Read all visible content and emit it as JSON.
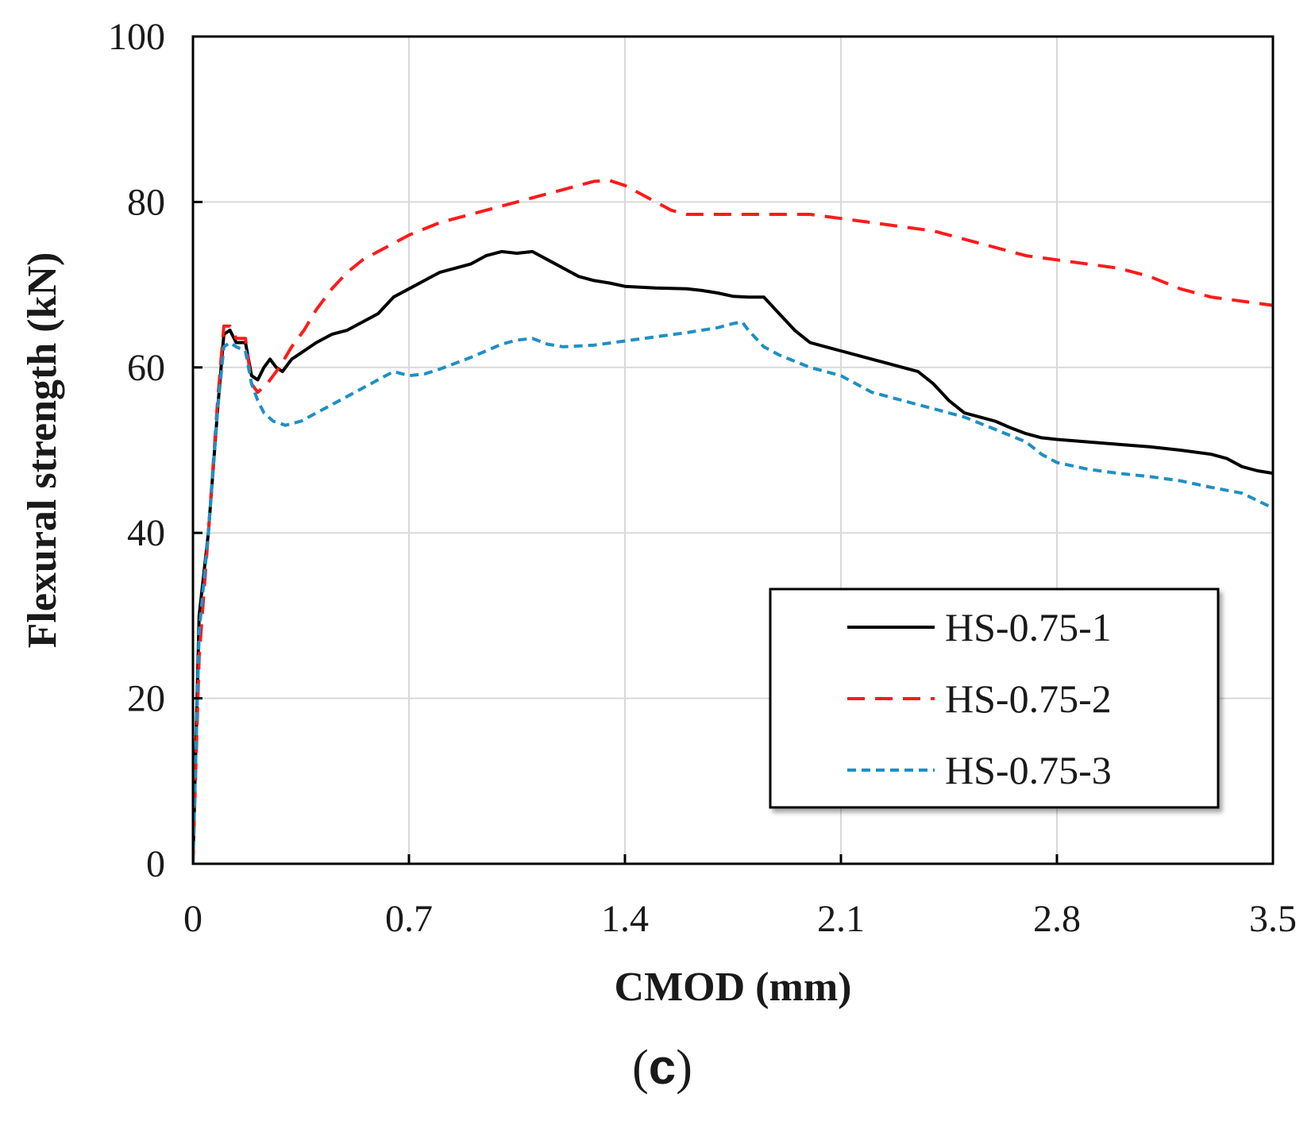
{
  "chart_data": {
    "type": "line",
    "panel_label_open": "(",
    "panel_label_letter": "c",
    "panel_label_close": ")",
    "xlabel": "CMOD (mm)",
    "ylabel": "Flexural strength (kN)",
    "xlim": [
      0,
      3.5
    ],
    "ylim": [
      0,
      100
    ],
    "x_ticks": [
      0,
      0.7,
      1.4,
      2.1,
      2.8,
      3.5
    ],
    "x_tick_labels": [
      "0",
      "0.7",
      "1.4",
      "2.1",
      "2.8",
      "3.5"
    ],
    "y_ticks": [
      0,
      20,
      40,
      60,
      80,
      100
    ],
    "y_tick_labels": [
      "0",
      "20",
      "40",
      "60",
      "80",
      "100"
    ],
    "grid": true,
    "legend_position": "lower-right",
    "series": [
      {
        "name": "HS-0.75-1",
        "color": "#000000",
        "dash": "solid",
        "points": [
          [
            0,
            0
          ],
          [
            0.02,
            30
          ],
          [
            0.05,
            40
          ],
          [
            0.08,
            55
          ],
          [
            0.1,
            64
          ],
          [
            0.12,
            64.5
          ],
          [
            0.14,
            63
          ],
          [
            0.17,
            63
          ],
          [
            0.19,
            59
          ],
          [
            0.21,
            58.5
          ],
          [
            0.23,
            60
          ],
          [
            0.25,
            61
          ],
          [
            0.27,
            60
          ],
          [
            0.29,
            59.5
          ],
          [
            0.32,
            61
          ],
          [
            0.36,
            62
          ],
          [
            0.4,
            63
          ],
          [
            0.45,
            64
          ],
          [
            0.5,
            64.5
          ],
          [
            0.55,
            65.5
          ],
          [
            0.6,
            66.5
          ],
          [
            0.65,
            68.5
          ],
          [
            0.7,
            69.5
          ],
          [
            0.75,
            70.5
          ],
          [
            0.8,
            71.5
          ],
          [
            0.85,
            72
          ],
          [
            0.9,
            72.5
          ],
          [
            0.95,
            73.5
          ],
          [
            1.0,
            74
          ],
          [
            1.05,
            73.8
          ],
          [
            1.1,
            74
          ],
          [
            1.15,
            73
          ],
          [
            1.2,
            72
          ],
          [
            1.25,
            71
          ],
          [
            1.3,
            70.5
          ],
          [
            1.35,
            70.2
          ],
          [
            1.4,
            69.8
          ],
          [
            1.5,
            69.6
          ],
          [
            1.6,
            69.5
          ],
          [
            1.65,
            69.3
          ],
          [
            1.7,
            69
          ],
          [
            1.75,
            68.6
          ],
          [
            1.8,
            68.5
          ],
          [
            1.85,
            68.5
          ],
          [
            1.9,
            66.5
          ],
          [
            1.95,
            64.5
          ],
          [
            2.0,
            63
          ],
          [
            2.05,
            62.5
          ],
          [
            2.1,
            62
          ],
          [
            2.15,
            61.5
          ],
          [
            2.2,
            61
          ],
          [
            2.25,
            60.5
          ],
          [
            2.3,
            60
          ],
          [
            2.35,
            59.5
          ],
          [
            2.4,
            58
          ],
          [
            2.45,
            56
          ],
          [
            2.5,
            54.5
          ],
          [
            2.55,
            54
          ],
          [
            2.6,
            53.5
          ],
          [
            2.65,
            52.7
          ],
          [
            2.7,
            52
          ],
          [
            2.75,
            51.5
          ],
          [
            2.8,
            51.3
          ],
          [
            2.9,
            51
          ],
          [
            3.0,
            50.7
          ],
          [
            3.1,
            50.4
          ],
          [
            3.2,
            50
          ],
          [
            3.3,
            49.5
          ],
          [
            3.35,
            49
          ],
          [
            3.4,
            48
          ],
          [
            3.45,
            47.5
          ],
          [
            3.5,
            47.2
          ]
        ]
      },
      {
        "name": "HS-0.75-2",
        "color": "#ff1a1a",
        "dash": "long-dash",
        "points": [
          [
            0,
            0
          ],
          [
            0.02,
            25
          ],
          [
            0.05,
            40
          ],
          [
            0.08,
            56
          ],
          [
            0.1,
            65
          ],
          [
            0.12,
            65
          ],
          [
            0.14,
            63.5
          ],
          [
            0.17,
            63.5
          ],
          [
            0.19,
            58
          ],
          [
            0.21,
            57
          ],
          [
            0.24,
            58
          ],
          [
            0.28,
            60
          ],
          [
            0.32,
            62.5
          ],
          [
            0.36,
            64.5
          ],
          [
            0.4,
            67
          ],
          [
            0.45,
            69.5
          ],
          [
            0.5,
            71.5
          ],
          [
            0.55,
            73
          ],
          [
            0.6,
            74
          ],
          [
            0.65,
            75
          ],
          [
            0.7,
            76
          ],
          [
            0.8,
            77.5
          ],
          [
            0.9,
            78.5
          ],
          [
            1.0,
            79.5
          ],
          [
            1.1,
            80.5
          ],
          [
            1.2,
            81.5
          ],
          [
            1.3,
            82.5
          ],
          [
            1.35,
            82.6
          ],
          [
            1.4,
            82
          ],
          [
            1.45,
            81
          ],
          [
            1.5,
            80
          ],
          [
            1.55,
            79
          ],
          [
            1.6,
            78.5
          ],
          [
            1.7,
            78.5
          ],
          [
            1.8,
            78.5
          ],
          [
            1.9,
            78.5
          ],
          [
            2.0,
            78.5
          ],
          [
            2.1,
            78
          ],
          [
            2.2,
            77.5
          ],
          [
            2.3,
            77
          ],
          [
            2.4,
            76.5
          ],
          [
            2.5,
            75.5
          ],
          [
            2.6,
            74.5
          ],
          [
            2.7,
            73.5
          ],
          [
            2.8,
            73
          ],
          [
            2.9,
            72.5
          ],
          [
            3.0,
            72
          ],
          [
            3.1,
            71
          ],
          [
            3.2,
            69.5
          ],
          [
            3.3,
            68.5
          ],
          [
            3.4,
            68
          ],
          [
            3.5,
            67.5
          ]
        ]
      },
      {
        "name": "HS-0.75-3",
        "color": "#1f8fc4",
        "dash": "short-dash",
        "points": [
          [
            0,
            0
          ],
          [
            0.02,
            28
          ],
          [
            0.05,
            40
          ],
          [
            0.08,
            55
          ],
          [
            0.1,
            62.5
          ],
          [
            0.12,
            63
          ],
          [
            0.14,
            62.5
          ],
          [
            0.17,
            62
          ],
          [
            0.19,
            58
          ],
          [
            0.21,
            56
          ],
          [
            0.23,
            54.5
          ],
          [
            0.26,
            53.5
          ],
          [
            0.3,
            53
          ],
          [
            0.35,
            53.5
          ],
          [
            0.4,
            54.5
          ],
          [
            0.45,
            55.5
          ],
          [
            0.5,
            56.5
          ],
          [
            0.55,
            57.5
          ],
          [
            0.6,
            58.5
          ],
          [
            0.65,
            59.5
          ],
          [
            0.7,
            59
          ],
          [
            0.75,
            59.2
          ],
          [
            0.8,
            59.8
          ],
          [
            0.85,
            60.5
          ],
          [
            0.9,
            61.2
          ],
          [
            0.95,
            62
          ],
          [
            1.0,
            62.8
          ],
          [
            1.05,
            63.3
          ],
          [
            1.1,
            63.5
          ],
          [
            1.15,
            62.8
          ],
          [
            1.2,
            62.5
          ],
          [
            1.3,
            62.7
          ],
          [
            1.4,
            63.2
          ],
          [
            1.5,
            63.7
          ],
          [
            1.6,
            64.2
          ],
          [
            1.7,
            64.8
          ],
          [
            1.75,
            65.3
          ],
          [
            1.78,
            65.5
          ],
          [
            1.8,
            64.5
          ],
          [
            1.85,
            62.5
          ],
          [
            1.9,
            61.5
          ],
          [
            2.0,
            60
          ],
          [
            2.1,
            59
          ],
          [
            2.2,
            57
          ],
          [
            2.3,
            56
          ],
          [
            2.4,
            55
          ],
          [
            2.5,
            54
          ],
          [
            2.6,
            52.5
          ],
          [
            2.7,
            51
          ],
          [
            2.75,
            49.5
          ],
          [
            2.8,
            48.5
          ],
          [
            2.9,
            47.7
          ],
          [
            3.0,
            47.2
          ],
          [
            3.1,
            46.8
          ],
          [
            3.2,
            46.3
          ],
          [
            3.3,
            45.5
          ],
          [
            3.4,
            44.8
          ],
          [
            3.5,
            43
          ]
        ]
      }
    ]
  }
}
